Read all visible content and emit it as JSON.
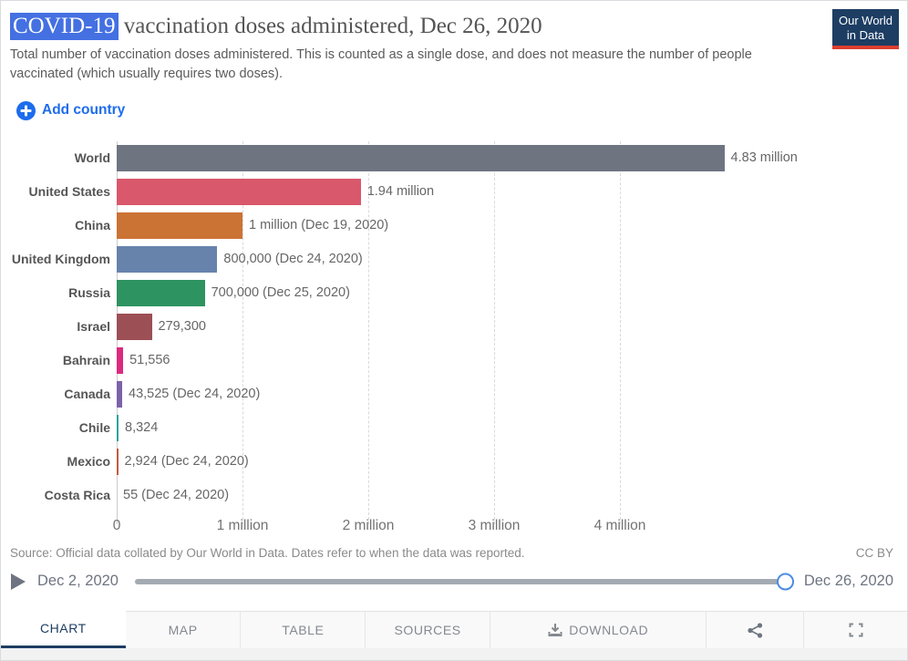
{
  "header": {
    "title_highlight": "COVID-19",
    "title_rest": " vaccination doses administered, Dec 26, 2020",
    "subtitle": "Total number of vaccination doses administered. This is counted as a single dose, and does not measure the number of people vaccinated (which usually requires two doses).",
    "logo_line1": "Our World",
    "logo_line2": "in Data"
  },
  "controls": {
    "add_country_label": "Add country"
  },
  "chart_data": {
    "type": "bar",
    "orientation": "horizontal",
    "title": "COVID-19 vaccination doses administered, Dec 26, 2020",
    "categories": [
      "World",
      "United States",
      "China",
      "United Kingdom",
      "Russia",
      "Israel",
      "Bahrain",
      "Canada",
      "Chile",
      "Mexico",
      "Costa Rica"
    ],
    "values": [
      4830000,
      1940000,
      1000000,
      800000,
      700000,
      279300,
      51556,
      43525,
      8324,
      2924,
      55
    ],
    "value_labels": [
      "4.83 million",
      "1.94 million",
      "1 million (Dec 19, 2020)",
      "800,000 (Dec 24, 2020)",
      "700,000 (Dec 25, 2020)",
      "279,300",
      "51,556",
      "43,525 (Dec 24, 2020)",
      "8,324",
      "2,924 (Dec 24, 2020)",
      "55 (Dec 24, 2020)"
    ],
    "bar_colors": [
      "#6e7581",
      "#d9586b",
      "#cb7334",
      "#6783ac",
      "#2d9360",
      "#9c4f55",
      "#dc2a7e",
      "#7d62a8",
      "#25a3a0",
      "#c25a3f",
      "#999999"
    ],
    "x_ticks": [
      "0",
      "1 million",
      "2 million",
      "3 million",
      "4 million"
    ],
    "x_tick_values": [
      0,
      1000000,
      2000000,
      3000000,
      4000000
    ],
    "xlim": [
      0,
      4830000
    ],
    "grid": "dashed-vertical",
    "legend": "none"
  },
  "footer": {
    "source": "Source: Official data collated by Our World in Data. Dates refer to when the data was reported.",
    "license": "CC BY"
  },
  "timeline": {
    "start": "Dec 2, 2020",
    "end": "Dec 26, 2020"
  },
  "tabs": [
    {
      "label": "CHART",
      "active": true
    },
    {
      "label": "MAP",
      "active": false
    },
    {
      "label": "TABLE",
      "active": false
    },
    {
      "label": "SOURCES",
      "active": false
    },
    {
      "label": "DOWNLOAD",
      "active": false
    }
  ],
  "icons": {
    "add": "plus-circle",
    "play": "play-triangle",
    "download": "download-tray",
    "share": "share-nodes",
    "fullscreen": "corner-brackets"
  },
  "colors": {
    "accent_blue": "#1d6ced",
    "navy": "#1d3d63",
    "logo_red": "#dc3e2f",
    "title_highlight_bg": "#4470e2"
  }
}
